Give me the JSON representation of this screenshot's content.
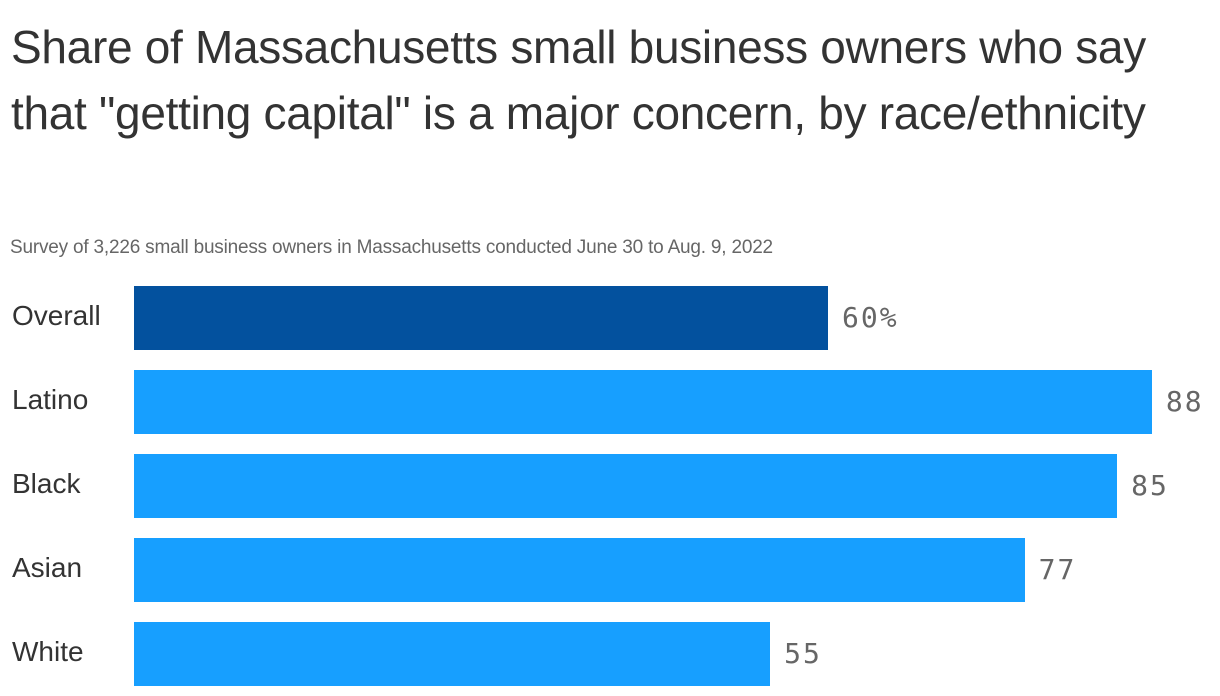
{
  "header": {
    "title": "Share of Massachusetts small business owners who say that \"getting capital\" is a major concern, by race/ethnicity",
    "subtitle": "Survey of 3,226 small business owners in Massachusetts conducted June 30 to Aug. 9, 2022"
  },
  "colors": {
    "highlight_bar": "#03519E",
    "default_bar": "#179FFF",
    "title_text": "#333333",
    "secondary_text": "#666666"
  },
  "rows": [
    {
      "label": "Overall",
      "value": 60,
      "display": "60%",
      "color": "#03519E"
    },
    {
      "label": "Latino",
      "value": 88,
      "display": "88",
      "color": "#179FFF"
    },
    {
      "label": "Black",
      "value": 85,
      "display": "85",
      "color": "#179FFF"
    },
    {
      "label": "Asian",
      "value": 77,
      "display": "77",
      "color": "#179FFF"
    },
    {
      "label": "White",
      "value": 55,
      "display": "55",
      "color": "#179FFF"
    }
  ],
  "chart_data": {
    "type": "bar",
    "orientation": "horizontal",
    "title": "Share of Massachusetts small business owners who say that \"getting capital\" is a major concern, by race/ethnicity",
    "subtitle": "Survey of 3,226 small business owners in Massachusetts conducted June 30 to Aug. 9, 2022",
    "categories": [
      "Overall",
      "Latino",
      "Black",
      "Asian",
      "White"
    ],
    "values": [
      60,
      88,
      85,
      77,
      55
    ],
    "value_labels": [
      "60%",
      "88",
      "85",
      "77",
      "55"
    ],
    "unit": "%",
    "xlabel": "",
    "ylabel": "",
    "xlim": [
      0,
      100
    ],
    "grid": false,
    "legend": null,
    "highlighted_category": "Overall"
  }
}
